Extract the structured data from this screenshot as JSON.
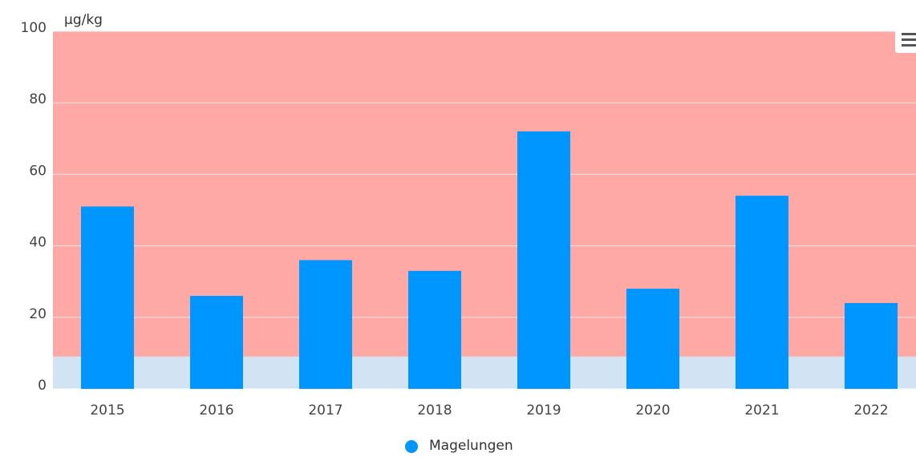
{
  "chart_data": {
    "type": "bar",
    "y_axis_title": "μg/kg",
    "categories": [
      "2015",
      "2016",
      "2017",
      "2018",
      "2019",
      "2020",
      "2021",
      "2022"
    ],
    "series": [
      {
        "name": "Magelungen",
        "color": "#0096ff",
        "values": [
          51,
          26,
          36,
          33,
          72,
          28,
          54,
          24
        ]
      }
    ],
    "ylim": [
      0,
      100
    ],
    "yticks": [
      0,
      20,
      40,
      60,
      80,
      100
    ],
    "grid": true,
    "plot_bands": [
      {
        "from": 0,
        "to": 9,
        "color": "#d2e4f3"
      },
      {
        "from": 9,
        "to": 100,
        "color": "#ffa9a6"
      }
    ],
    "legend": "bottom"
  }
}
